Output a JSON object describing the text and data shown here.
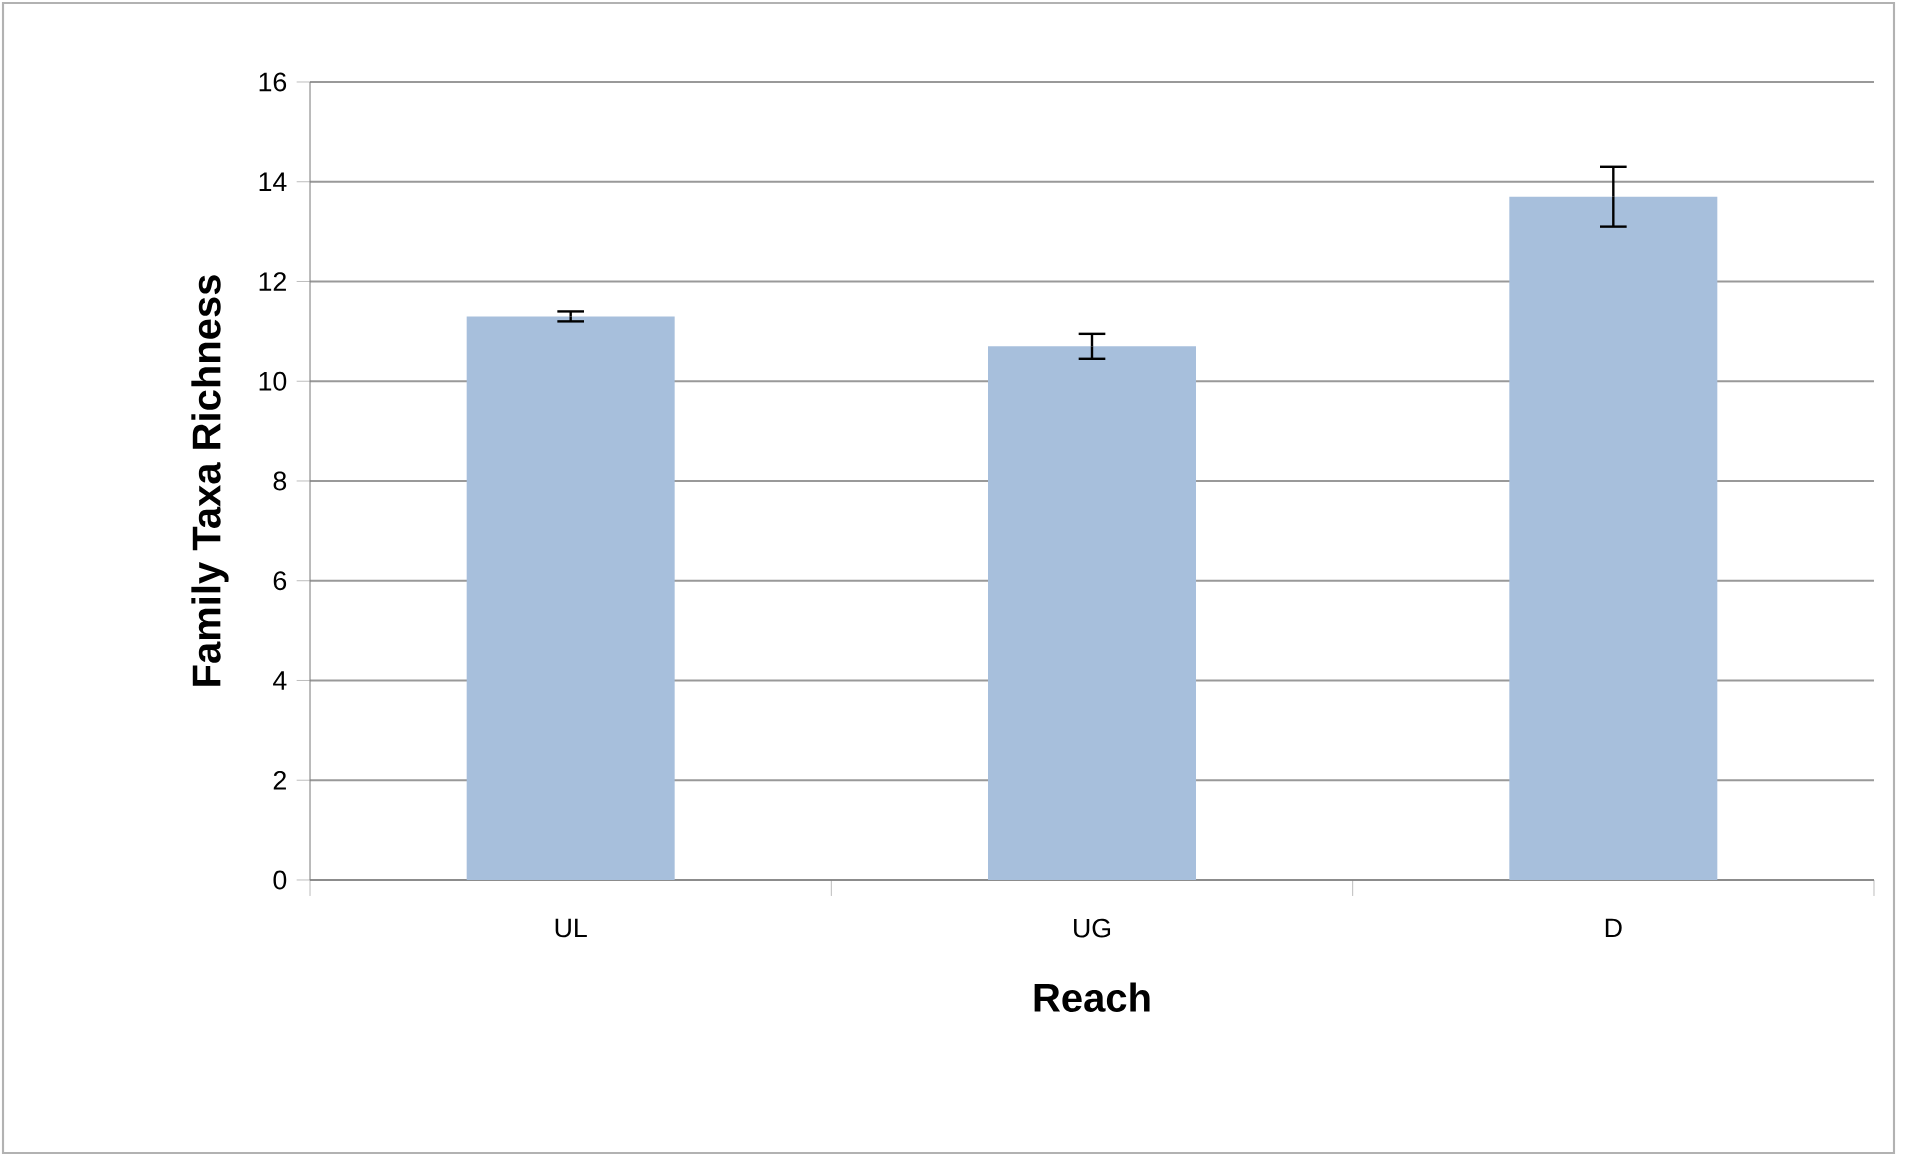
{
  "chart_data": {
    "type": "bar",
    "xlabel": "Reach",
    "ylabel": "Family Taxa Richness",
    "categories": [
      "UL",
      "UG",
      "D"
    ],
    "values": [
      11.3,
      10.7,
      13.7
    ],
    "errors": [
      0.1,
      0.25,
      0.6
    ],
    "color": "#a7bfdc",
    "ylim": [
      0,
      16
    ],
    "yticks": [
      0,
      2,
      4,
      6,
      8,
      10,
      12,
      14,
      16
    ],
    "grid": "y"
  }
}
